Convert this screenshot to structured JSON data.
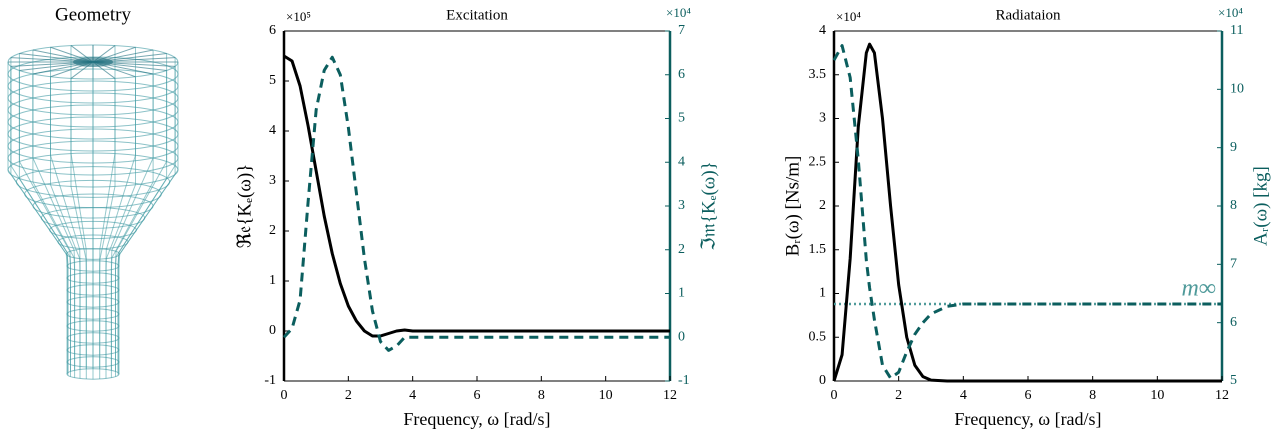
{
  "geometry": {
    "title": "Geometry"
  },
  "chart_data": [
    {
      "type": "line",
      "title": "Excitation",
      "xlabel": "Frequency, ω [rad/s]",
      "ylabel": "ℜ𝔢{Kₑ(ω)}",
      "y2label": "ℑ𝔪{Kₑ(ω)}",
      "y_multiplier": "×10⁵",
      "y2_multiplier": "×10⁴",
      "xlim": [
        0,
        12
      ],
      "xticks": [
        0,
        2,
        4,
        6,
        8,
        10,
        12
      ],
      "ylim": [
        -1,
        6
      ],
      "yticks": [
        -1,
        0,
        1,
        2,
        3,
        4,
        5,
        6
      ],
      "y2lim": [
        -1,
        7
      ],
      "y2ticks": [
        -1,
        0,
        1,
        2,
        3,
        4,
        5,
        6,
        7
      ],
      "y_color": "#000000",
      "y2_color": "#0b5e5e",
      "x": [
        0,
        0.25,
        0.5,
        0.75,
        1,
        1.25,
        1.5,
        1.75,
        2,
        2.25,
        2.5,
        2.75,
        3,
        3.25,
        3.5,
        3.75,
        4,
        12
      ],
      "series": [
        {
          "color": "#000000",
          "style": "solid",
          "axis": "y",
          "values": [
            5.5,
            5.4,
            4.9,
            4.1,
            3.2,
            2.3,
            1.55,
            0.95,
            0.5,
            0.2,
            0.0,
            -0.1,
            -0.1,
            -0.05,
            0,
            0.02,
            0,
            0
          ]
        },
        {
          "color": "#0b5e5e",
          "style": "dashed",
          "axis": "y2",
          "values": [
            0,
            0.2,
            0.85,
            3.1,
            5.2,
            6.1,
            6.4,
            6.0,
            4.8,
            3.3,
            1.8,
            0.6,
            -0.1,
            -0.3,
            -0.2,
            0,
            0,
            0
          ]
        }
      ]
    },
    {
      "type": "line",
      "title": "Radiataion",
      "xlabel": "Frequency, ω [rad/s]",
      "ylabel": "Bᵣ(ω) [Ns/m]",
      "y2label": "Aᵣ(ω) [kg]",
      "y_multiplier": "×10⁴",
      "y2_multiplier": "×10⁴",
      "xlim": [
        0,
        12
      ],
      "xticks": [
        0,
        2,
        4,
        6,
        8,
        10,
        12
      ],
      "ylim": [
        0,
        4
      ],
      "yticks": [
        0,
        0.5,
        1,
        1.5,
        2,
        2.5,
        3,
        3.5,
        4
      ],
      "y2lim": [
        5,
        11
      ],
      "y2ticks": [
        5,
        6,
        7,
        8,
        9,
        10,
        11
      ],
      "y_color": "#000000",
      "y2_color": "#0b5e5e",
      "x": [
        0,
        0.25,
        0.5,
        0.75,
        1,
        1.1,
        1.25,
        1.5,
        1.75,
        2,
        2.25,
        2.5,
        2.75,
        3,
        3.5,
        4,
        12
      ],
      "series": [
        {
          "color": "#000000",
          "style": "solid",
          "axis": "y",
          "values": [
            0,
            0.3,
            1.4,
            2.9,
            3.75,
            3.85,
            3.75,
            3.0,
            2.0,
            1.1,
            0.5,
            0.18,
            0.05,
            0.01,
            0,
            0,
            0
          ]
        },
        {
          "color": "#0b5e5e",
          "style": "dashed",
          "axis": "y2",
          "values": [
            10.5,
            10.75,
            10.2,
            8.8,
            7.07,
            6.6,
            6.05,
            5.27,
            5.05,
            5.15,
            5.5,
            5.8,
            6.0,
            6.15,
            6.28,
            6.32,
            6.32
          ]
        }
      ],
      "reference_line": {
        "value": 6.32,
        "label": "m∞",
        "axis": "y2",
        "color": "#4f9a9a"
      }
    }
  ]
}
